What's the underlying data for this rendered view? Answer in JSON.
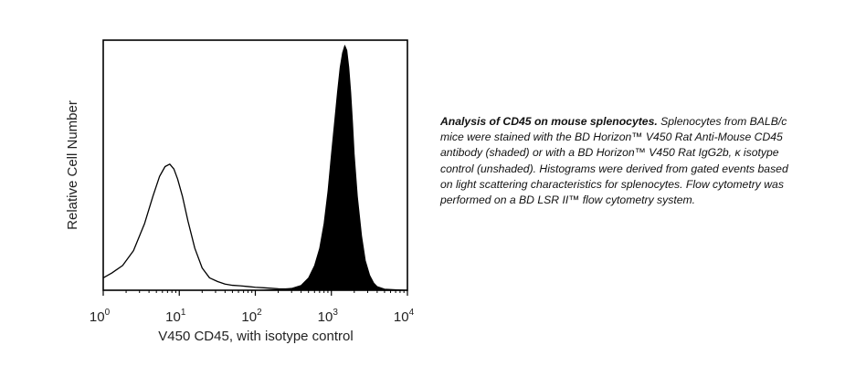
{
  "chart_data": {
    "type": "area",
    "x_scale": "log",
    "xlim": [
      1,
      10000
    ],
    "ylim": [
      0,
      1.0
    ],
    "xlabel": "V450 CD45, with isotype control",
    "ylabel": "Relative Cell Number",
    "x_ticks": [
      {
        "value": 1,
        "base": "10",
        "exp": "0"
      },
      {
        "value": 10,
        "base": "10",
        "exp": "1"
      },
      {
        "value": 100,
        "base": "10",
        "exp": "2"
      },
      {
        "value": 1000,
        "base": "10",
        "exp": "3"
      },
      {
        "value": 10000,
        "base": "10",
        "exp": "4"
      }
    ],
    "grid": false,
    "series": [
      {
        "style": "unshaded",
        "fill": "none",
        "color": "#000000",
        "x": [
          1,
          1.3,
          1.8,
          2.5,
          3.5,
          4.5,
          5.5,
          6.5,
          7.5,
          8.5,
          9.5,
          11,
          13,
          16,
          20,
          25,
          32,
          40,
          50,
          63,
          80,
          100,
          130,
          160,
          200,
          300,
          400,
          500,
          700,
          1000,
          1500,
          2000,
          3000,
          5000,
          10000
        ],
        "values": [
          0.05,
          0.07,
          0.1,
          0.16,
          0.27,
          0.38,
          0.46,
          0.5,
          0.51,
          0.49,
          0.45,
          0.38,
          0.28,
          0.17,
          0.09,
          0.05,
          0.035,
          0.025,
          0.02,
          0.018,
          0.015,
          0.012,
          0.01,
          0.008,
          0.006,
          0.005,
          0.004,
          0.004,
          0.003,
          0.002,
          0.001,
          0.001,
          0.001,
          0.0,
          0.0
        ]
      },
      {
        "style": "shaded",
        "fill": "#000000",
        "color": "#000000",
        "x": [
          1,
          100,
          200,
          300,
          400,
          500,
          600,
          700,
          800,
          900,
          1000,
          1100,
          1200,
          1300,
          1400,
          1500,
          1600,
          1700,
          1800,
          1900,
          2000,
          2200,
          2500,
          2800,
          3200,
          3600,
          4000,
          5000,
          10000
        ],
        "values": [
          0.0,
          0.0,
          0.003,
          0.008,
          0.02,
          0.05,
          0.1,
          0.17,
          0.27,
          0.4,
          0.55,
          0.68,
          0.8,
          0.9,
          0.96,
          0.99,
          0.97,
          0.9,
          0.8,
          0.68,
          0.55,
          0.38,
          0.22,
          0.12,
          0.06,
          0.03,
          0.015,
          0.005,
          0.0
        ]
      }
    ]
  },
  "caption": {
    "title": "Analysis of CD45 on mouse splenocytes.",
    "body": " Splenocytes from BALB/c mice were stained with the BD Horizon™ V450 Rat Anti-Mouse CD45 antibody (shaded) or with a BD Horizon™ V450 Rat IgG2b, κ isotype control (unshaded). Histograms were derived from gated events based on light scattering characteristics for splenocytes.  Flow cytometry was performed on a BD LSR II™ flow cytometry system."
  }
}
